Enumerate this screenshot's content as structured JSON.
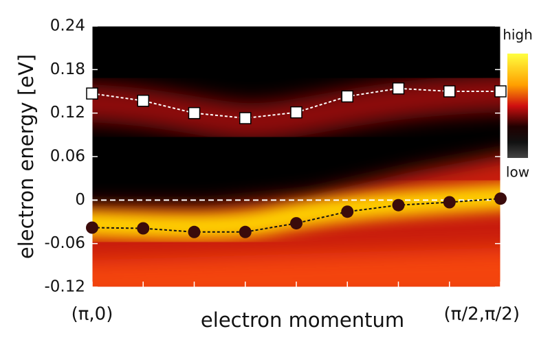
{
  "chart_data": {
    "type": "line",
    "ylabel": "electron energy [eV]",
    "xlabel": "electron momentum",
    "categories": [
      "(π,0)",
      null,
      null,
      null,
      null,
      null,
      null,
      null,
      "(π/2,π/2)"
    ],
    "series": [
      {
        "color": "#ffffff",
        "marker": "square",
        "values": [
          0.147,
          0.137,
          0.12,
          0.113,
          0.121,
          0.143,
          0.154,
          0.15,
          0.15
        ]
      },
      {
        "color": "#3b0b0b",
        "marker": "circle",
        "values": [
          -0.038,
          -0.039,
          -0.044,
          -0.044,
          -0.032,
          -0.016,
          -0.007,
          -0.003,
          0.002
        ]
      }
    ],
    "ylim": [
      -0.12,
      0.24
    ],
    "yticks": [
      -0.12,
      -0.06,
      0,
      0.06,
      0.12,
      0.18,
      0.24
    ],
    "hline": 0,
    "colorbar": {
      "top": "high",
      "bottom": "low"
    }
  }
}
